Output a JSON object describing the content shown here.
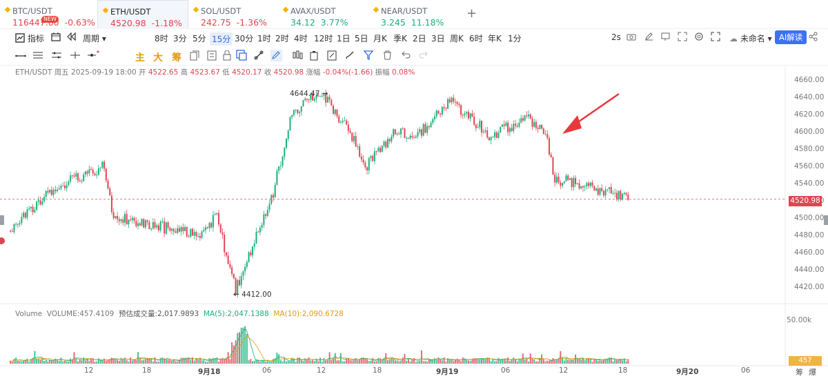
{
  "tabs": [
    {
      "symbol": "BTC/USDT",
      "price": "116447.60",
      "change": "-0.63%",
      "dir": "dn",
      "new": "NEW"
    },
    {
      "symbol": "ETH/USDT",
      "price": "4520.98",
      "change": "-1.18%",
      "dir": "dn"
    },
    {
      "symbol": "SOL/USDT",
      "price": "242.75",
      "change": "-1.36%",
      "dir": "dn"
    },
    {
      "symbol": "AVAX/USDT",
      "price": "34.12",
      "change": "3.77%",
      "dir": "up"
    },
    {
      "symbol": "NEAR/USDT",
      "price": "3.245",
      "change": "11.18%",
      "dir": "up"
    }
  ],
  "toolbar": {
    "indicators": "指标",
    "period": "周期",
    "intervals": [
      "8时",
      "3分",
      "5分",
      "15分",
      "30分",
      "1时",
      "2时",
      "4时",
      "12时",
      "1日",
      "5日",
      "月K",
      "季K",
      "2日",
      "3日",
      "周K",
      "6时",
      "年K",
      "1分"
    ],
    "selected_interval": "15分",
    "refresh": "2s",
    "layout_name": "未命名",
    "ai": "AI解读",
    "strategy_labels": [
      "主",
      "大",
      "筹"
    ]
  },
  "ohlc": {
    "pair": "ETH/USDT",
    "weekday": "周五",
    "datetime": "2025-09-19 18:00",
    "open_label": "开",
    "open": "4522.65",
    "high_label": "高",
    "high": "4523.67",
    "low_label": "低",
    "low": "4520.17",
    "close_label": "收",
    "close": "4520.98",
    "change_label": "涨幅",
    "change": "-0.04%(-1.66)",
    "amp_label": "振幅",
    "amp": "0.08%"
  },
  "volume": {
    "label": "Volume",
    "value_text": "VOLUME:457.4109",
    "est_label": "预估成交量:2,017.9893",
    "ma5": "MA(5):2,047.1388",
    "ma10": "MA(10):2,090.6728",
    "axis_label": "50.00k",
    "last": "457"
  },
  "price_axis": [
    "4660.00",
    "4640.00",
    "4620.00",
    "4600.00",
    "4580.00",
    "4560.00",
    "4540.00",
    "4520.00",
    "4500.00",
    "4480.00",
    "4460.00",
    "4440.00",
    "4420.00"
  ],
  "last_price": "4520.98",
  "annotations": {
    "high": "4644.47",
    "low": "4412.00"
  },
  "x_axis": [
    "12",
    "18",
    "9月18",
    "06",
    "12",
    "18",
    "9月19",
    "06",
    "12",
    "18",
    "9月20",
    "06"
  ],
  "x_axis_bold": [
    "9月18",
    "9月19",
    "9月20"
  ],
  "corner": [
    "筹",
    "爆"
  ],
  "colors": {
    "up": "#1aaf7a",
    "down": "#e04451",
    "accent": "#3d71f5"
  },
  "chart_data": {
    "type": "candlestick",
    "pair": "ETH/USDT",
    "interval": "15分",
    "ylim": [
      4410,
      4665
    ],
    "anchors": [
      [
        0,
        4485
      ],
      [
        20,
        4530
      ],
      [
        50,
        4560
      ],
      [
        55,
        4500
      ],
      [
        100,
        4480
      ],
      [
        110,
        4500
      ],
      [
        120,
        4415
      ],
      [
        140,
        4530
      ],
      [
        150,
        4620
      ],
      [
        165,
        4645
      ],
      [
        180,
        4600
      ],
      [
        190,
        4560
      ],
      [
        205,
        4600
      ],
      [
        215,
        4590
      ],
      [
        235,
        4635
      ],
      [
        255,
        4595
      ],
      [
        275,
        4615
      ],
      [
        285,
        4595
      ],
      [
        290,
        4545
      ],
      [
        310,
        4535
      ],
      [
        330,
        4520
      ]
    ]
  }
}
